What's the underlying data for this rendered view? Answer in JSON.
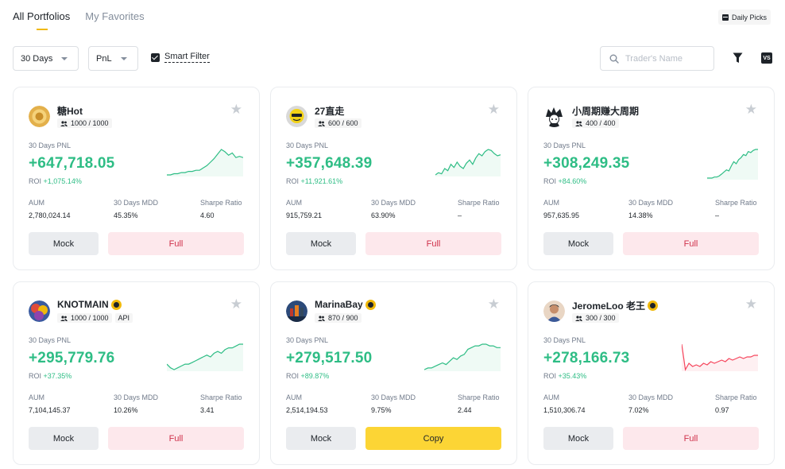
{
  "tabs": [
    {
      "label": "All Portfolios",
      "active": true
    },
    {
      "label": "My Favorites",
      "active": false
    }
  ],
  "daily_picks": "Daily Picks",
  "filters": {
    "period": "30 Days",
    "sort": "PnL",
    "smart_filter": "Smart Filter",
    "search_placeholder": "Trader's Name",
    "vs": "VS"
  },
  "colors": {
    "profit": "#2ebd85",
    "loss": "#f6465d",
    "accent": "#f0b90b",
    "copy_button": "#fcd535"
  },
  "labels": {
    "pnl": "30 Days PNL",
    "roi": "ROI",
    "aum": "AUM",
    "mdd": "30 Days MDD",
    "sharpe": "Sharpe Ratio",
    "mock": "Mock"
  },
  "traders": [
    {
      "name": "糖Hot",
      "avatar": "doge-avatar",
      "slots": "1000 / 1000",
      "pnl": "+647,718.05",
      "roi": "+1,075.14%",
      "aum": "2,780,024.14",
      "mdd": "45.35%",
      "sharpe": "4.60",
      "action": "Full",
      "trend": "up",
      "spark": [
        2,
        2,
        3,
        3,
        4,
        4,
        5,
        5,
        6,
        6,
        8,
        10,
        13,
        16,
        20,
        24,
        22,
        19,
        21,
        17,
        18,
        17
      ]
    },
    {
      "name": "27直走",
      "avatar": "smiley-avatar",
      "slots": "600 / 600",
      "pnl": "+357,648.39",
      "roi": "+11,921.61%",
      "aum": "915,759.21",
      "mdd": "63.90%",
      "sharpe": "–",
      "action": "Full",
      "trend": "up",
      "spark": [
        2,
        4,
        3,
        8,
        6,
        12,
        9,
        14,
        10,
        8,
        13,
        16,
        12,
        18,
        22,
        20,
        24,
        26,
        25,
        22,
        20,
        21
      ]
    },
    {
      "name": "小周期赚大周期",
      "avatar": "anime-avatar",
      "slots": "400 / 400",
      "pnl": "+308,249.35",
      "roi": "+84.60%",
      "aum": "957,635.95",
      "mdd": "14.38%",
      "sharpe": "–",
      "action": "Full",
      "trend": "up",
      "spark": [
        2,
        2,
        2,
        3,
        3,
        4,
        6,
        8,
        10,
        9,
        14,
        18,
        16,
        20,
        22,
        25,
        24,
        28,
        27,
        29,
        30,
        30
      ]
    },
    {
      "name": "KNOTMAIN",
      "avatar": "colorful-avatar",
      "slots": "1000 / 1000",
      "api": "API",
      "crown": true,
      "pnl": "+295,779.76",
      "roi": "+37.35%",
      "aum": "7,104,145.37",
      "mdd": "10.26%",
      "sharpe": "3.41",
      "action": "Full",
      "trend": "up",
      "spark": [
        8,
        6,
        5,
        6,
        7,
        8,
        8,
        9,
        10,
        11,
        12,
        13,
        12,
        14,
        15,
        14,
        16,
        17,
        17,
        18,
        19,
        19
      ]
    },
    {
      "name": "MarinaBay",
      "avatar": "city-avatar",
      "slots": "870 / 900",
      "crown": true,
      "pnl": "+279,517.50",
      "roi": "+89.87%",
      "aum": "2,514,194.53",
      "mdd": "9.75%",
      "sharpe": "2.44",
      "action": "Copy",
      "trend": "up",
      "spark": [
        3,
        4,
        4,
        5,
        6,
        7,
        6,
        8,
        10,
        9,
        11,
        12,
        15,
        16,
        17,
        17,
        18,
        18,
        17,
        17,
        16,
        16
      ]
    },
    {
      "name": "JeromeLoo 老王",
      "avatar": "person-avatar",
      "slots": "300 / 300",
      "crown": true,
      "pnl": "+278,166.73",
      "roi": "+35.43%",
      "aum": "1,510,306.74",
      "mdd": "7.02%",
      "sharpe": "0.97",
      "action": "Full",
      "trend": "down",
      "spark": [
        20,
        4,
        8,
        6,
        7,
        6,
        8,
        7,
        9,
        8,
        9,
        10,
        9,
        11,
        10,
        11,
        12,
        11,
        12,
        12,
        13,
        13
      ]
    }
  ]
}
